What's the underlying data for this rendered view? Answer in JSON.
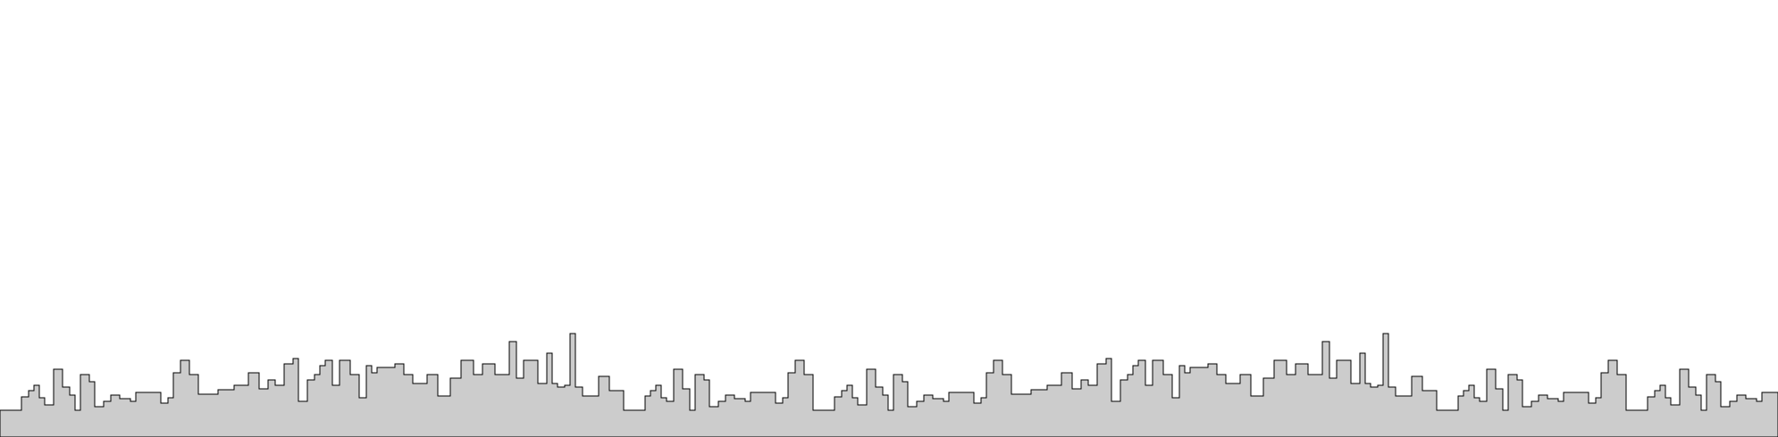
{
  "scene": {
    "description_free": true,
    "colors": {
      "background": "#ffffff",
      "silhouette_fill": "#cccccc",
      "outline": "#000000"
    }
  }
}
